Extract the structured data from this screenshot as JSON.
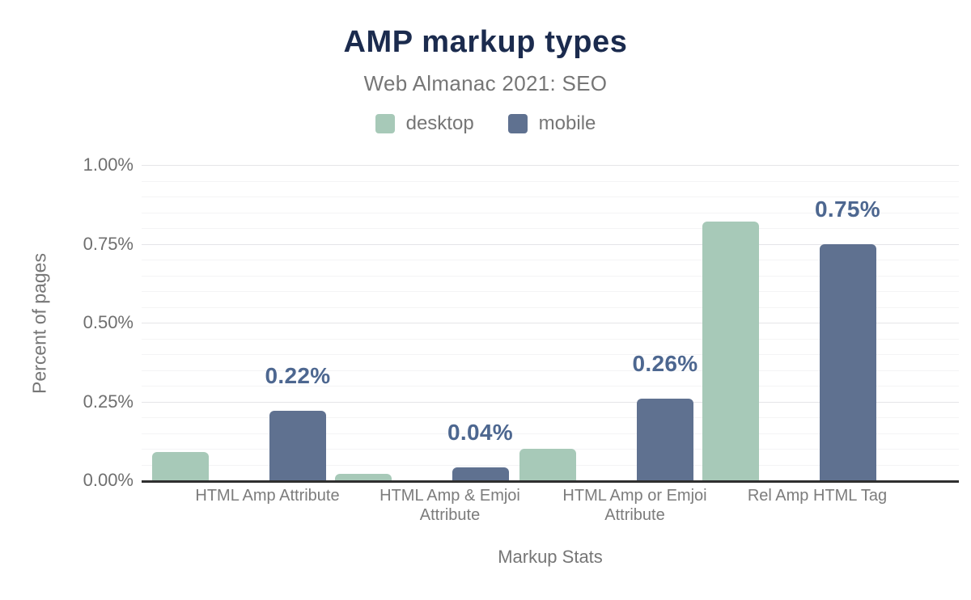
{
  "chart": {
    "title": "AMP markup types",
    "subtitle": "Web Almanac 2021: SEO",
    "legend": [
      {
        "label": "desktop",
        "color": "#a7c9b8"
      },
      {
        "label": "mobile",
        "color": "#5f7190"
      }
    ],
    "y_axis_title": "Percent of pages",
    "x_axis_title": "Markup Stats",
    "y_tick_labels": [
      "1.00%",
      "0.75%",
      "0.50%",
      "0.25%",
      "0.00%"
    ],
    "colors": {
      "title": "#1b2b4e",
      "text_muted": "#767676",
      "tick_text": "#6f6f6f",
      "category_text": "#7c7c7c",
      "annotation": "#4d6790",
      "axis_line": "#2f2f2f",
      "grid_major": "#e5e5e8",
      "grid_minor": "#f4f4f5"
    }
  },
  "chart_data": {
    "type": "bar",
    "title": "AMP markup types",
    "subtitle": "Web Almanac 2021: SEO",
    "categories": [
      "HTML Amp Attribute",
      "HTML Amp & Emjoi Attribute",
      "HTML Amp or Emjoi Attribute",
      "Rel Amp HTML Tag"
    ],
    "series": [
      {
        "name": "desktop",
        "color": "#a7c9b8",
        "values": [
          0.09,
          0.02,
          0.1,
          0.82
        ]
      },
      {
        "name": "mobile",
        "color": "#5f7190",
        "values": [
          0.22,
          0.04,
          0.26,
          0.75
        ],
        "data_labels": [
          "0.22%",
          "0.04%",
          "0.26%",
          "0.75%"
        ]
      }
    ],
    "xlabel": "Markup Stats",
    "ylabel": "Percent of pages",
    "ylim": [
      0,
      1.0
    ],
    "y_tick_interval": 0.25,
    "y_minor_grid_interval": 0.05,
    "y_tick_format": "percent_2dp",
    "legend_position": "top",
    "grid": "horizontal"
  }
}
